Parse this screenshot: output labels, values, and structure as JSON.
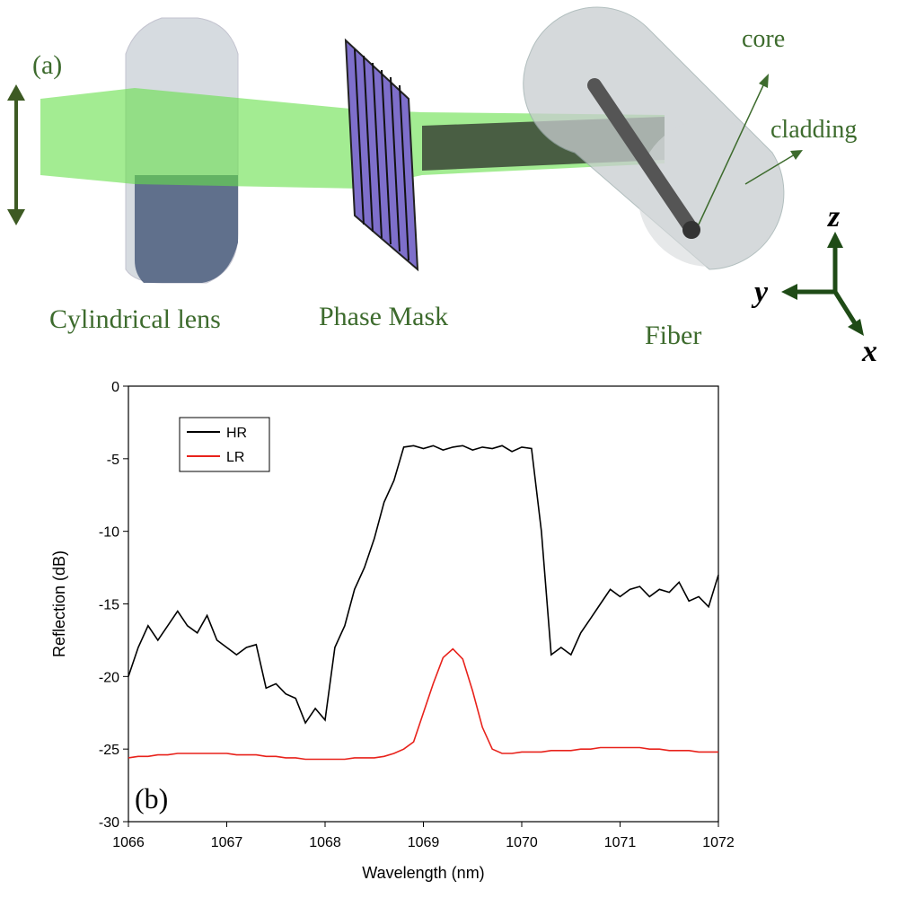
{
  "diagram": {
    "panel_label": "(a)",
    "labels": {
      "core": "core",
      "cladding": "cladding",
      "lens": "Cylindrical lens",
      "mask": "Phase Mask",
      "fiber": "Fiber"
    },
    "axes": {
      "z": "z",
      "y": "y",
      "x": "x"
    }
  },
  "chart_data": {
    "type": "line",
    "annotation": "(b)",
    "x_label": "Wavelength (nm)",
    "y_label": "Reflection (dB)",
    "xlim": [
      1066,
      1072
    ],
    "xticks": [
      1066,
      1067,
      1068,
      1069,
      1070,
      1071,
      1072
    ],
    "ylim": [
      -30,
      0
    ],
    "yticks": [
      0,
      -5,
      -10,
      -15,
      -20,
      -25,
      -30
    ],
    "legend": "upper left",
    "x": [
      1066.0,
      1066.1,
      1066.2,
      1066.3,
      1066.4,
      1066.5,
      1066.6,
      1066.7,
      1066.8,
      1066.9,
      1067.0,
      1067.1,
      1067.2,
      1067.3,
      1067.4,
      1067.5,
      1067.6,
      1067.7,
      1067.8,
      1067.9,
      1068.0,
      1068.1,
      1068.2,
      1068.3,
      1068.4,
      1068.5,
      1068.6,
      1068.7,
      1068.8,
      1068.9,
      1069.0,
      1069.1,
      1069.2,
      1069.3,
      1069.4,
      1069.5,
      1069.6,
      1069.7,
      1069.8,
      1069.9,
      1070.0,
      1070.1,
      1070.2,
      1070.3,
      1070.4,
      1070.5,
      1070.6,
      1070.7,
      1070.8,
      1070.9,
      1071.0,
      1071.1,
      1071.2,
      1071.3,
      1071.4,
      1071.5,
      1071.6,
      1071.7,
      1071.8,
      1071.9,
      1072.0
    ],
    "series": [
      {
        "name": "HR",
        "color": "#000000",
        "values": [
          -20,
          -18,
          -16.5,
          -17.5,
          -16.5,
          -15.5,
          -16.5,
          -17,
          -15.8,
          -17.5,
          -18,
          -18.5,
          -18,
          -17.8,
          -20.8,
          -20.5,
          -21.2,
          -21.5,
          -23.2,
          -22.2,
          -23,
          -18,
          -16.5,
          -14,
          -12.5,
          -10.5,
          -8,
          -6.5,
          -4.2,
          -4.1,
          -4.3,
          -4.1,
          -4.4,
          -4.2,
          -4.1,
          -4.4,
          -4.2,
          -4.3,
          -4.1,
          -4.5,
          -4.2,
          -4.3,
          -10,
          -18.5,
          -18,
          -18.5,
          -17,
          -16,
          -15,
          -14,
          -14.5,
          -14,
          -13.8,
          -14.5,
          -14,
          -14.2,
          -13.5,
          -14.8,
          -14.5,
          -15.2,
          -13
        ]
      },
      {
        "name": "LR",
        "color": "#e8221b",
        "values": [
          -25.6,
          -25.5,
          -25.5,
          -25.4,
          -25.4,
          -25.3,
          -25.3,
          -25.3,
          -25.3,
          -25.3,
          -25.3,
          -25.4,
          -25.4,
          -25.4,
          -25.5,
          -25.5,
          -25.6,
          -25.6,
          -25.7,
          -25.7,
          -25.7,
          -25.7,
          -25.7,
          -25.6,
          -25.6,
          -25.6,
          -25.5,
          -25.3,
          -25,
          -24.5,
          -22.5,
          -20.5,
          -18.7,
          -18.1,
          -18.8,
          -21,
          -23.5,
          -25,
          -25.3,
          -25.3,
          -25.2,
          -25.2,
          -25.2,
          -25.1,
          -25.1,
          -25.1,
          -25,
          -25,
          -24.9,
          -24.9,
          -24.9,
          -24.9,
          -24.9,
          -25,
          -25,
          -25.1,
          -25.1,
          -25.1,
          -25.2,
          -25.2,
          -25.2
        ]
      }
    ]
  }
}
